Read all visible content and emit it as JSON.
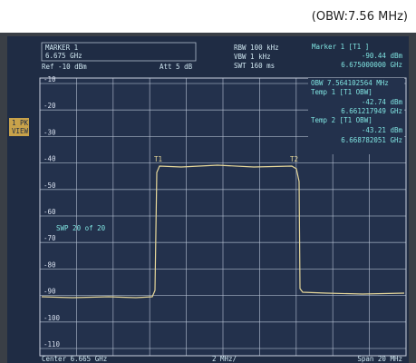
{
  "caption": "(OBW:7.56 MHz)",
  "header": {
    "marker_box": "MARKER 1",
    "marker_freq": "6.675 GHz",
    "ref": "Ref -10 dBm",
    "att": "Att  5 dB",
    "rbw": "RBW 100 kHz",
    "vbw": "VBW 1 kHz",
    "swt": "SWT 160 ms"
  },
  "marker_readout": {
    "title": "Marker 1 [T1 ]",
    "level": "-90.44 dBm",
    "freq": "6.675000000 GHz"
  },
  "obw_readout": {
    "obw": "OBW  7.564102564 MHz",
    "temp1": "Temp 1 [T1 OBW]",
    "temp1_level": "-42.74 dBm",
    "temp1_freq": "6.661217949 GHz",
    "temp2": "Temp 2 [T1 OBW]",
    "temp2_level": "-43.21 dBm",
    "temp2_freq": "6.668782051 GHz"
  },
  "side_label": [
    "1 PK",
    "VIEW"
  ],
  "sweep": "SWP    20 of    20",
  "trace_markers": [
    "T1",
    "T2"
  ],
  "y_labels": [
    "-10",
    "-20",
    "-30",
    "-40",
    "-50",
    "-60",
    "-70",
    "-80",
    "-90",
    "-100",
    "-110"
  ],
  "footer": {
    "center": "Center  6.665 GHz",
    "span_div": "2 MHz/",
    "span": "Span  20 MHz"
  }
}
